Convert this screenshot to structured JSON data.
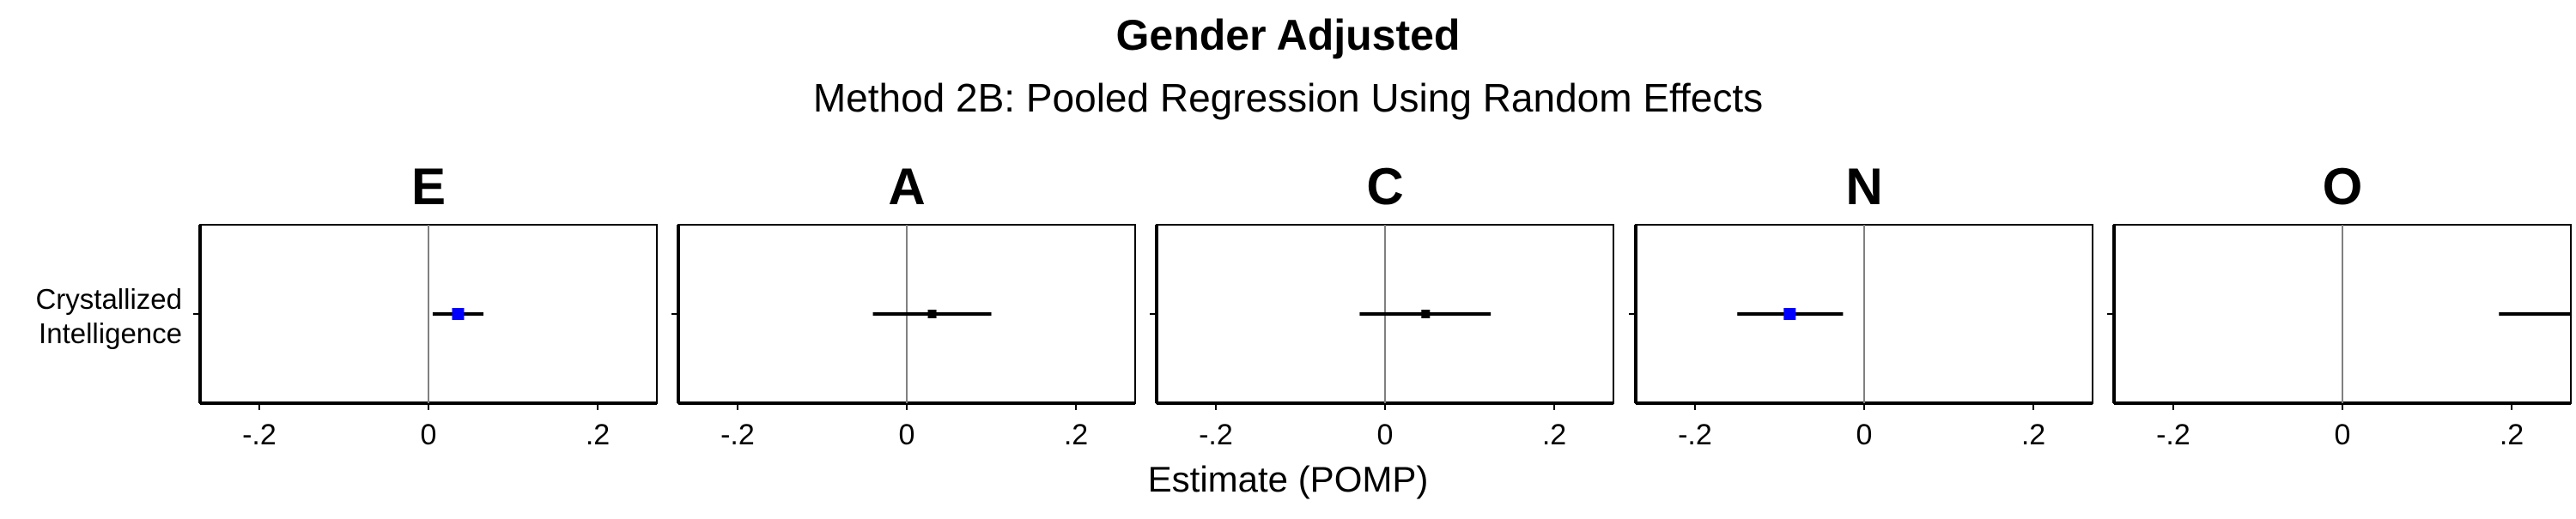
{
  "chart_data": {
    "type": "forest",
    "title": "Gender Adjusted",
    "subtitle": "Method 2B: Pooled Regression Using Random Effects",
    "xlabel": "Estimate (POMP)",
    "ylabel": "",
    "xlim": [
      -0.27,
      0.27
    ],
    "xticks": [
      -0.2,
      0,
      0.2
    ],
    "xtick_labels": [
      ".2",
      "0",
      ".2"
    ],
    "row_label_lines": [
      "Crystallized",
      "Intelligence"
    ],
    "panels": [
      {
        "name": "E",
        "estimate": 0.035,
        "ci": [
          0.005,
          0.065
        ],
        "marker_color": "#0000ff"
      },
      {
        "name": "A",
        "estimate": 0.03,
        "ci": [
          -0.04,
          0.1
        ],
        "marker_color": "#000000"
      },
      {
        "name": "C",
        "estimate": 0.048,
        "ci": [
          -0.03,
          0.125
        ],
        "marker_color": "#000000"
      },
      {
        "name": "N",
        "estimate": -0.088,
        "ci": [
          -0.15,
          -0.025
        ],
        "marker_color": "#0000ff"
      },
      {
        "name": "O",
        "estimate": null,
        "ci": [
          0.185,
          0.27
        ],
        "marker_color": "#000000"
      }
    ],
    "grid": false,
    "reference_line_at": 0
  }
}
